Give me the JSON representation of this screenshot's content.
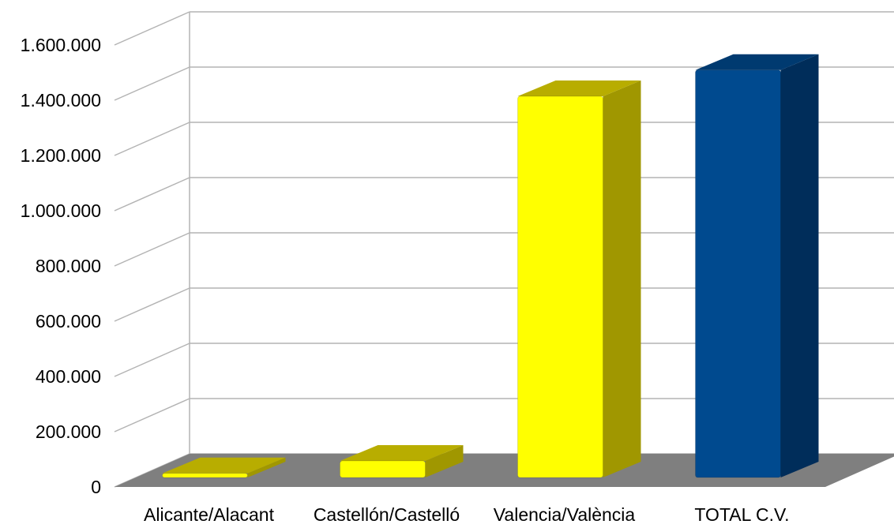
{
  "chart_data": {
    "type": "bar",
    "style": "3d-column",
    "categories": [
      "Alicante/Alacant",
      "Castellón/Castelló",
      "Valencia/València",
      "TOTAL C.V."
    ],
    "values": [
      15000,
      60000,
      1380000,
      1475000
    ],
    "colors": [
      "#ffff00",
      "#ffff00",
      "#ffff00",
      "#004a8f"
    ],
    "side_colors": [
      "#a09700",
      "#a09700",
      "#a09700",
      "#002d5a"
    ],
    "top_colors": [
      "#b8ad00",
      "#b8ad00",
      "#b8ad00",
      "#003a70"
    ],
    "floor_color": "#7f7f7f",
    "ylim": [
      0,
      1600000
    ],
    "yticks": [
      0,
      200000,
      400000,
      600000,
      800000,
      1000000,
      1200000,
      1400000,
      1600000
    ],
    "ytick_labels": [
      "0",
      "200.000",
      "400.000",
      "600.000",
      "800.000",
      "1.000.000",
      "1.200.000",
      "1.400.000",
      "1.600.000"
    ],
    "grid": true,
    "legend": "none"
  }
}
